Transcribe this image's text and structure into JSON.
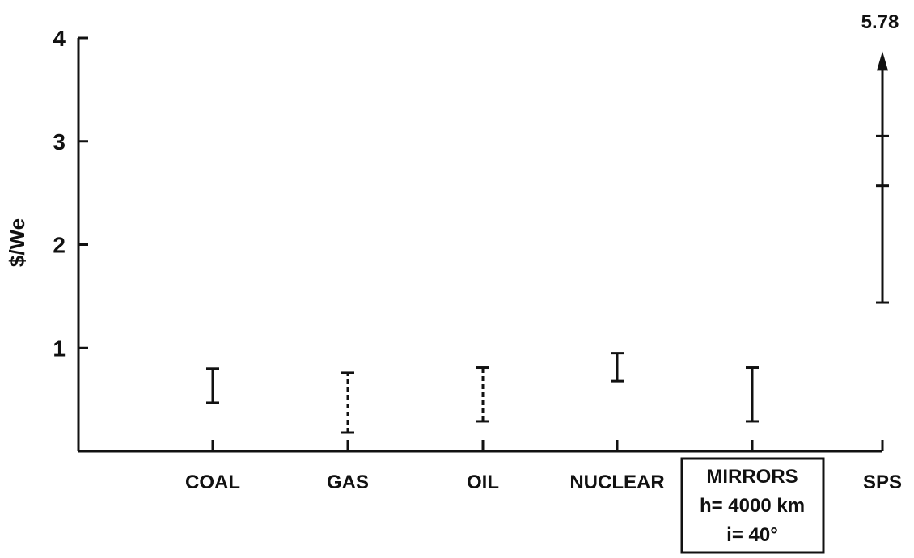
{
  "chart_data": {
    "type": "range",
    "title": "",
    "xlabel": "",
    "ylabel": "$/We",
    "ylim": [
      0,
      4
    ],
    "yticks": [
      "1",
      "2",
      "3",
      "4"
    ],
    "grid": false,
    "categories": [
      "COAL",
      "GAS",
      "OIL",
      "NUCLEAR",
      "MIRRORS",
      "SPS"
    ],
    "ranges": [
      {
        "category": "COAL",
        "low": 0.47,
        "high": 0.8,
        "dashed": false
      },
      {
        "category": "GAS",
        "low": 0.18,
        "high": 0.76,
        "dashed": true
      },
      {
        "category": "OIL",
        "low": 0.29,
        "high": 0.81,
        "dashed": true
      },
      {
        "category": "NUCLEAR",
        "low": 0.68,
        "high": 0.95,
        "dashed": false
      },
      {
        "category": "MIRRORS",
        "low": 0.29,
        "high": 0.81,
        "dashed": false
      },
      {
        "category": "SPS",
        "low": 1.44,
        "high": 5.78,
        "dashed": false,
        "marks": [
          2.57,
          3.05
        ],
        "arrow_up": true
      }
    ],
    "annotations": {
      "sps_top_value": "5.78",
      "mirrors_box": [
        "MIRRORS",
        "h= 4000 km",
        "i= 40°"
      ]
    }
  }
}
